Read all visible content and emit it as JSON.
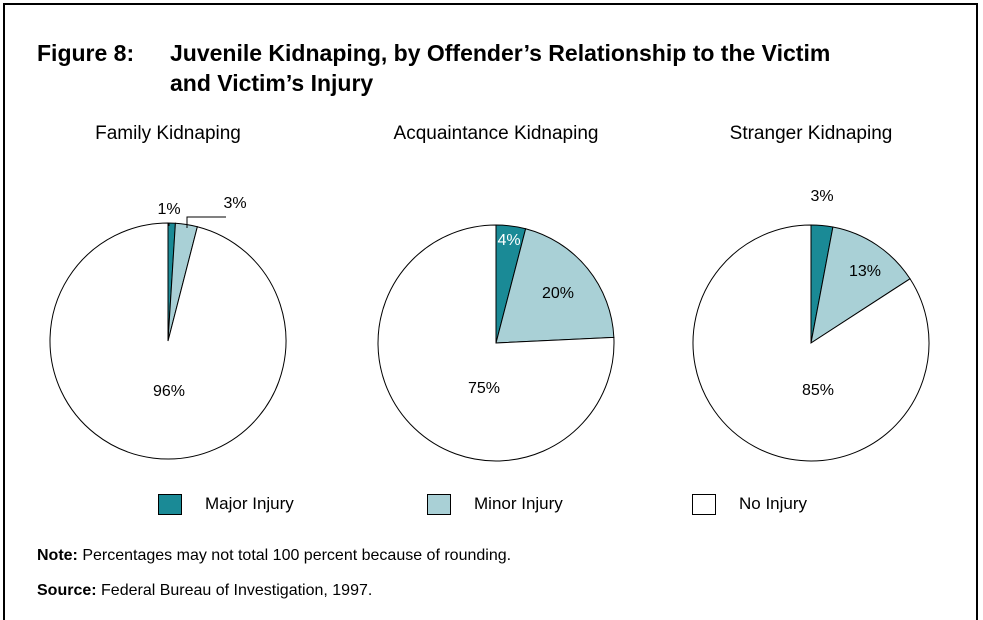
{
  "figure": {
    "label": "Figure 8:",
    "title_line1": "Juvenile Kidnaping, by Offender’s Relationship to the Victim",
    "title_line2": "and Victim’s Injury"
  },
  "colors": {
    "major": "#1a8a96",
    "minor": "#a9d0d6",
    "none": "#ffffff"
  },
  "chart_data": [
    {
      "type": "pie",
      "title": "Family Kidnaping",
      "slices": [
        {
          "label": "Major Injury",
          "value": 1,
          "display": "1%"
        },
        {
          "label": "Minor Injury",
          "value": 3,
          "display": "3%"
        },
        {
          "label": "No Injury",
          "value": 96,
          "display": "96%"
        }
      ]
    },
    {
      "type": "pie",
      "title": "Acquaintance Kidnaping",
      "slices": [
        {
          "label": "Major Injury",
          "value": 4,
          "display": "4%"
        },
        {
          "label": "Minor Injury",
          "value": 20,
          "display": "20%"
        },
        {
          "label": "No Injury",
          "value": 75,
          "display": "75%"
        }
      ]
    },
    {
      "type": "pie",
      "title": "Stranger Kidnaping",
      "slices": [
        {
          "label": "Major Injury",
          "value": 3,
          "display": "3%"
        },
        {
          "label": "Minor Injury",
          "value": 13,
          "display": "13%"
        },
        {
          "label": "No Injury",
          "value": 85,
          "display": "85%"
        }
      ]
    }
  ],
  "legend": [
    {
      "label": "Major Injury",
      "color": "#1a8a96"
    },
    {
      "label": "Minor Injury",
      "color": "#a9d0d6"
    },
    {
      "label": "No Injury",
      "color": "#ffffff"
    }
  ],
  "note": {
    "label": "Note:",
    "text": " Percentages may not total 100 percent because of rounding."
  },
  "source": {
    "label": "Source:",
    "text": " Federal Bureau of Investigation, 1997."
  }
}
